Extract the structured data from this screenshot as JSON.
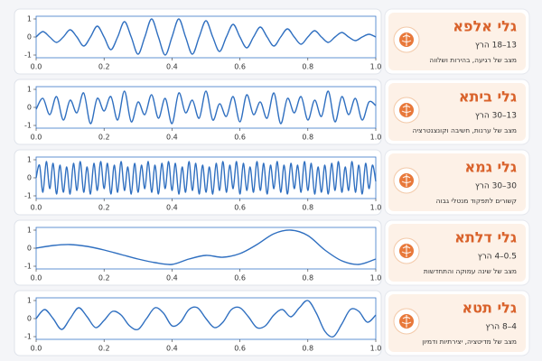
{
  "chart_data": [
    {
      "type": "line",
      "title": "גלי אלפא",
      "subtitle": "13–18 הרץ",
      "description": "מצב של רגיעה, בהירות ושלווה",
      "color": "#2f6fc0",
      "x": [
        0,
        0.02,
        0.04,
        0.06,
        0.08,
        0.1,
        0.12,
        0.14,
        0.16,
        0.18,
        0.2,
        0.22,
        0.24,
        0.26,
        0.28,
        0.3,
        0.32,
        0.34,
        0.36,
        0.38,
        0.4,
        0.42,
        0.44,
        0.46,
        0.48,
        0.5,
        0.52,
        0.54,
        0.56,
        0.58,
        0.6,
        0.62,
        0.64,
        0.66,
        0.68,
        0.7,
        0.72,
        0.74,
        0.76,
        0.78,
        0.8,
        0.82,
        0.84,
        0.86,
        0.88,
        0.9,
        0.92,
        0.94,
        0.96,
        0.98,
        1
      ],
      "values": [
        0,
        0.3,
        0,
        -0.3,
        0,
        0.4,
        0,
        -0.5,
        0,
        0.6,
        0,
        -0.7,
        0,
        0.85,
        0,
        -0.95,
        0,
        1,
        0,
        -1,
        0,
        1,
        0,
        -0.95,
        0,
        0.9,
        0,
        -0.8,
        0,
        0.7,
        0,
        -0.6,
        0,
        0.55,
        0,
        -0.5,
        0,
        0.45,
        0,
        -0.4,
        0,
        0.35,
        0,
        -0.3,
        0,
        0.25,
        0,
        -0.2,
        0,
        0.15,
        0
      ],
      "xlim": [
        0,
        1
      ],
      "ylim": [
        -1.15,
        1.15
      ],
      "xticks": [
        {
          "value": 0,
          "label": "0.0"
        },
        0.2,
        0.4,
        0.6,
        0.8,
        {
          "value": 1,
          "label": "1.0"
        }
      ],
      "yticks": [
        -1,
        0,
        1
      ]
    },
    {
      "type": "line",
      "title": "גלי ביתא",
      "subtitle": "13–30 הרץ",
      "description": "מצב של ערנות, חשיבה וקונצנטרציה",
      "color": "#2f6fc0",
      "x": [
        0,
        0.02,
        0.04,
        0.06,
        0.08,
        0.1,
        0.12,
        0.14,
        0.16,
        0.18,
        0.2,
        0.22,
        0.24,
        0.26,
        0.28,
        0.3,
        0.32,
        0.34,
        0.36,
        0.38,
        0.4,
        0.42,
        0.44,
        0.46,
        0.48,
        0.5,
        0.52,
        0.54,
        0.56,
        0.58,
        0.6,
        0.62,
        0.64,
        0.66,
        0.68,
        0.7,
        0.72,
        0.74,
        0.76,
        0.78,
        0.8,
        0.82,
        0.84,
        0.86,
        0.88,
        0.9,
        0.92,
        0.94,
        0.96,
        0.98,
        1
      ],
      "values": [
        -0.1,
        0.5,
        -0.4,
        0.6,
        -0.7,
        0.4,
        -0.3,
        0.8,
        -0.9,
        0.5,
        -0.2,
        0.6,
        -0.7,
        0.9,
        -0.8,
        0.3,
        -0.4,
        0.7,
        -0.6,
        0.5,
        -0.9,
        0.8,
        -0.3,
        0.4,
        -0.6,
        0.9,
        -0.7,
        0.2,
        -0.5,
        0.6,
        -0.8,
        0.7,
        -0.4,
        0.3,
        -0.6,
        0.8,
        -0.9,
        0.5,
        -0.3,
        0.6,
        -0.7,
        0.4,
        -0.5,
        0.9,
        -0.8,
        0.6,
        -0.4,
        0.5,
        -0.7,
        0.3,
        0.1
      ],
      "xlim": [
        0,
        1
      ],
      "ylim": [
        -1.15,
        1.15
      ],
      "xticks": [
        {
          "value": 0,
          "label": "0.0"
        },
        0.2,
        0.4,
        0.6,
        0.8,
        {
          "value": 1,
          "label": "1.0"
        }
      ],
      "yticks": [
        -1,
        0,
        1
      ]
    },
    {
      "type": "line",
      "title": "גלי גמא",
      "subtitle": "30–30 הרץ",
      "description": "קשורים לתפקוד מנטלי גבוה",
      "color": "#2f6fc0",
      "x": [
        0,
        0.01,
        0.02,
        0.03,
        0.04,
        0.05,
        0.06,
        0.07,
        0.08,
        0.09,
        0.1,
        0.11,
        0.12,
        0.13,
        0.14,
        0.15,
        0.16,
        0.17,
        0.18,
        0.19,
        0.2,
        0.21,
        0.22,
        0.23,
        0.24,
        0.25,
        0.26,
        0.27,
        0.28,
        0.29,
        0.3,
        0.31,
        0.32,
        0.33,
        0.34,
        0.35,
        0.36,
        0.37,
        0.38,
        0.39,
        0.4,
        0.41,
        0.42,
        0.43,
        0.44,
        0.45,
        0.46,
        0.47,
        0.48,
        0.49,
        0.5,
        0.51,
        0.52,
        0.53,
        0.54,
        0.55,
        0.56,
        0.57,
        0.58,
        0.59,
        0.6,
        0.61,
        0.62,
        0.63,
        0.64,
        0.65,
        0.66,
        0.67,
        0.68,
        0.69,
        0.7,
        0.71,
        0.72,
        0.73,
        0.74,
        0.75,
        0.76,
        0.77,
        0.78,
        0.79,
        0.8,
        0.81,
        0.82,
        0.83,
        0.84,
        0.85,
        0.86,
        0.87,
        0.88,
        0.89,
        0.9,
        0.91,
        0.92,
        0.93,
        0.94,
        0.95,
        0.96,
        0.97,
        0.98,
        0.99,
        1
      ],
      "values": [
        0,
        0.7,
        -0.8,
        0.9,
        -0.6,
        0.8,
        -0.9,
        0.7,
        -0.8,
        0.6,
        -0.9,
        0.8,
        -0.7,
        0.9,
        -0.8,
        0.6,
        -0.9,
        0.8,
        -0.7,
        0.9,
        -0.6,
        0.8,
        -0.9,
        0.7,
        -0.8,
        0.9,
        -0.7,
        0.6,
        -0.9,
        0.8,
        -0.8,
        0.7,
        -0.6,
        0.9,
        -0.8,
        0.7,
        -0.9,
        0.8,
        -0.6,
        0.9,
        -0.7,
        0.8,
        -0.9,
        0.6,
        -0.8,
        0.9,
        -0.7,
        0.8,
        -0.9,
        0.7,
        -0.8,
        0.6,
        -0.9,
        0.8,
        -0.7,
        0.9,
        -0.8,
        0.7,
        -0.6,
        0.9,
        -0.9,
        0.8,
        -0.7,
        0.6,
        -0.8,
        0.9,
        -0.7,
        0.8,
        -0.9,
        0.7,
        -0.6,
        0.9,
        -0.8,
        0.7,
        -0.9,
        0.8,
        -0.6,
        0.7,
        -0.8,
        0.9,
        -0.7,
        0.8,
        -0.9,
        0.6,
        -0.8,
        0.7,
        -0.9,
        0.8,
        -0.7,
        0.9,
        -0.8,
        0.6,
        -0.7,
        0.9,
        -0.8,
        0.7,
        -0.9,
        0.8,
        -0.6,
        0.7,
        -0.2
      ],
      "xlim": [
        0,
        1
      ],
      "ylim": [
        -1.15,
        1.15
      ],
      "xticks": [
        {
          "value": 0,
          "label": "0.0"
        },
        0.2,
        0.4,
        0.6,
        0.8,
        {
          "value": 1,
          "label": "1.0"
        }
      ],
      "yticks": [
        -1,
        0,
        1
      ]
    },
    {
      "type": "line",
      "title": "גלי דלתא",
      "subtitle": "0.5–4 הרץ",
      "description": "מצב של שינה עמוקה והתחדשות",
      "color": "#2f6fc0",
      "x": [
        0,
        0.05,
        0.1,
        0.15,
        0.2,
        0.25,
        0.3,
        0.35,
        0.4,
        0.45,
        0.5,
        0.55,
        0.6,
        0.65,
        0.7,
        0.75,
        0.8,
        0.85,
        0.9,
        0.95,
        1
      ],
      "values": [
        0,
        0.15,
        0.2,
        0.1,
        -0.1,
        -0.35,
        -0.6,
        -0.8,
        -0.9,
        -0.6,
        -0.4,
        -0.5,
        -0.3,
        0.2,
        0.8,
        1,
        0.7,
        -0.1,
        -0.7,
        -0.9,
        -0.6
      ],
      "xlim": [
        0,
        1
      ],
      "ylim": [
        -1.15,
        1.15
      ],
      "xticks": [
        {
          "value": 0,
          "label": "0.0"
        },
        0.2,
        0.4,
        0.6,
        0.8,
        {
          "value": 1,
          "label": "1.0"
        }
      ],
      "yticks": [
        -1,
        0,
        1
      ]
    },
    {
      "type": "line",
      "title": "גלי תטא",
      "subtitle": "4–8 הרץ",
      "description": "מצב של מדיטציה, יצירתיות ודמיון",
      "color": "#2f6fc0",
      "x": [
        0,
        0.025,
        0.05,
        0.075,
        0.1,
        0.125,
        0.15,
        0.175,
        0.2,
        0.225,
        0.25,
        0.275,
        0.3,
        0.325,
        0.35,
        0.375,
        0.4,
        0.425,
        0.45,
        0.475,
        0.5,
        0.525,
        0.55,
        0.575,
        0.6,
        0.625,
        0.65,
        0.675,
        0.7,
        0.725,
        0.75,
        0.775,
        0.8,
        0.825,
        0.85,
        0.875,
        0.9,
        0.925,
        0.95,
        0.975,
        1
      ],
      "values": [
        0,
        0.5,
        0,
        -0.6,
        0,
        0.6,
        0.1,
        -0.5,
        -0.1,
        0.4,
        0.2,
        -0.4,
        -0.6,
        0,
        0.6,
        0.3,
        -0.4,
        -0.2,
        0.5,
        0.6,
        0,
        -0.5,
        -0.2,
        0.5,
        0.6,
        0.1,
        -0.5,
        -0.4,
        0.2,
        0.5,
        0.1,
        0.6,
        1,
        0.3,
        -0.7,
        -1,
        -0.3,
        0.5,
        0.4,
        -0.2,
        0.2
      ],
      "xlim": [
        0,
        1
      ],
      "ylim": [
        -1.15,
        1.15
      ],
      "xticks": [
        {
          "value": 0,
          "label": "0.0"
        },
        0.2,
        0.4,
        0.6,
        0.8,
        {
          "value": 1,
          "label": "1.0"
        }
      ],
      "yticks": [
        -1,
        0,
        1
      ]
    }
  ]
}
